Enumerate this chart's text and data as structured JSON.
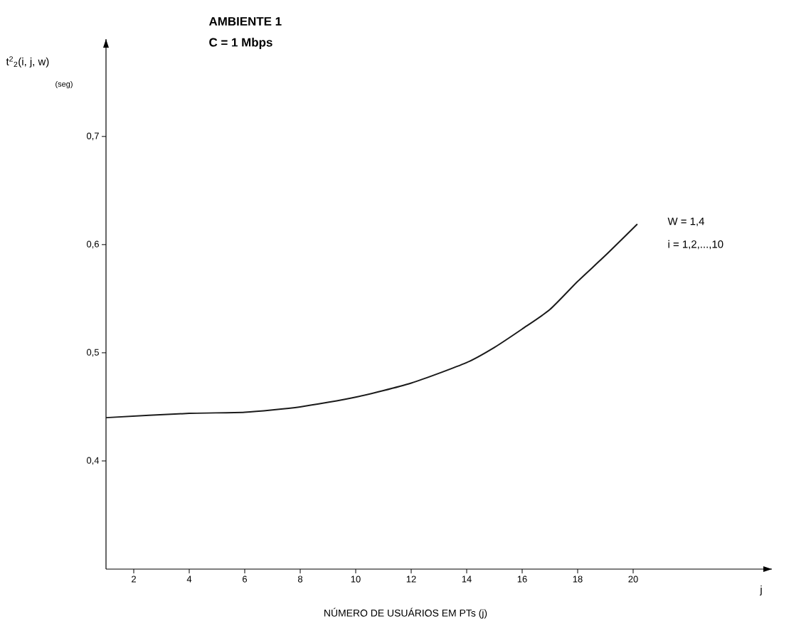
{
  "chart_data": {
    "type": "line",
    "title": "AMBIENTE 1",
    "subtitle": "C = 1 Mbps",
    "xlabel": "NÚMERO DE USUÁRIOS EM PTs (j)",
    "ylabel": "t$^{2}$$_{2}$(i, j, w)",
    "annotations": [
      "(seg)",
      "j",
      "W = 1,4",
      "i = 1,2,...,10"
    ],
    "x": [
      1,
      4,
      6,
      8,
      10,
      12,
      14,
      15,
      16,
      17,
      18,
      19,
      20.15
    ],
    "values": [
      0.44,
      0.444,
      0.445,
      0.45,
      0.459,
      0.472,
      0.491,
      0.505,
      0.522,
      0.54,
      0.566,
      0.59,
      0.619
    ],
    "color": "#1a1a1a",
    "line_style": "solid",
    "marker": "none",
    "xlim": [
      1,
      25
    ],
    "ylim": [
      0.3,
      0.79
    ],
    "xticks": [
      2,
      4,
      6,
      8,
      10,
      12,
      14,
      16,
      18,
      20
    ],
    "yticks": [
      {
        "value": 0.4,
        "label": "0,4"
      },
      {
        "value": 0.5,
        "label": "0,5"
      },
      {
        "value": 0.6,
        "label": "0,6"
      },
      {
        "value": 0.7,
        "label": "0,7"
      }
    ]
  }
}
